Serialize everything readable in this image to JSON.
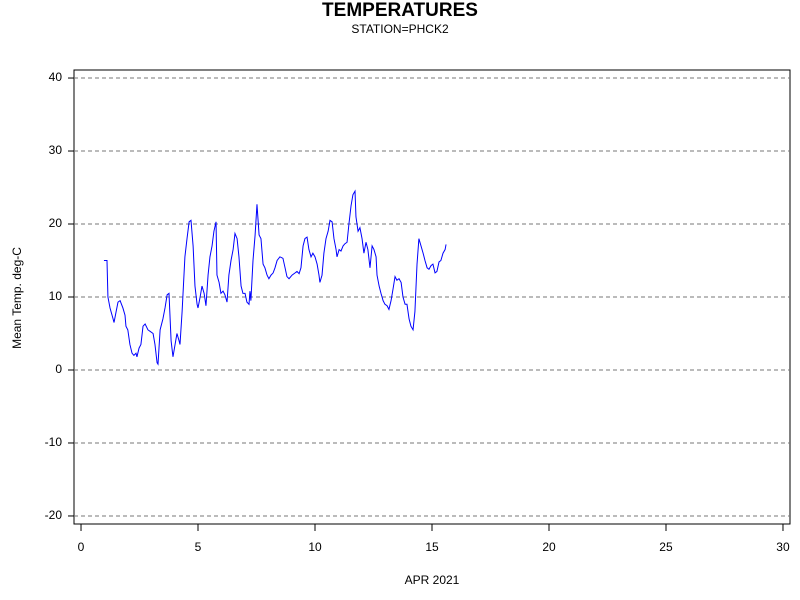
{
  "chart_data": {
    "type": "line",
    "title": "TEMPERATURES",
    "subtitle": "STATION=PHCK2",
    "x_label": "APR 2021",
    "y_label": "Mean Temp. deg-C",
    "xlim": [
      -0.3,
      30.3
    ],
    "ylim": [
      -21.1,
      41.1
    ],
    "xticks": [
      0,
      5,
      10,
      15,
      20,
      25,
      30
    ],
    "yticks": [
      -20,
      -10,
      0,
      10,
      20,
      30,
      40
    ],
    "grid": true,
    "series": [
      {
        "color": "#0000ff",
        "x": [
          0.98,
          1.11,
          1.15,
          1.24,
          1.37,
          1.41,
          1.5,
          1.58,
          1.67,
          1.79,
          1.88,
          1.92,
          2.0,
          2.09,
          2.18,
          2.26,
          2.35,
          2.39,
          2.48,
          2.56,
          2.65,
          2.74,
          2.86,
          2.95,
          3.08,
          3.16,
          3.25,
          3.29,
          3.38,
          3.5,
          3.59,
          3.68,
          3.76,
          3.85,
          3.93,
          4.02,
          4.1,
          4.19,
          4.23,
          4.32,
          4.44,
          4.53,
          4.62,
          4.7,
          4.79,
          4.87,
          4.96,
          5.0,
          5.09,
          5.17,
          5.26,
          5.34,
          5.43,
          5.51,
          5.6,
          5.68,
          5.77,
          5.81,
          5.9,
          5.98,
          6.07,
          6.15,
          6.24,
          6.32,
          6.41,
          6.5,
          6.58,
          6.67,
          6.75,
          6.84,
          6.92,
          7.01,
          7.09,
          7.18,
          7.22,
          7.26,
          7.35,
          7.44,
          7.52,
          7.61,
          7.69,
          7.78,
          7.86,
          7.95,
          8.03,
          8.12,
          8.21,
          8.29,
          8.38,
          8.5,
          8.63,
          8.72,
          8.8,
          8.89,
          9.02,
          9.15,
          9.23,
          9.32,
          9.4,
          9.49,
          9.57,
          9.66,
          9.74,
          9.83,
          9.91,
          10.0,
          10.09,
          10.17,
          10.21,
          10.3,
          10.38,
          10.47,
          10.56,
          10.64,
          10.73,
          10.81,
          10.9,
          10.94,
          11.03,
          11.11,
          11.2,
          11.28,
          11.37,
          11.45,
          11.54,
          11.62,
          11.71,
          11.75,
          11.84,
          11.92,
          12.01,
          12.09,
          12.18,
          12.26,
          12.35,
          12.44,
          12.52,
          12.61,
          12.65,
          12.74,
          12.82,
          12.91,
          12.99,
          13.08,
          13.16,
          13.25,
          13.33,
          13.42,
          13.5,
          13.59,
          13.68,
          13.76,
          13.85,
          13.93,
          14.02,
          14.1,
          14.19,
          14.27,
          14.36,
          14.44,
          14.53,
          14.62,
          14.7,
          14.79,
          14.87,
          14.96,
          15.04,
          15.13,
          15.21,
          15.3,
          15.38,
          15.47,
          15.56,
          15.6
        ],
        "values": [
          15,
          15,
          10,
          8.5,
          7,
          6.5,
          8,
          9.3,
          9.5,
          8.5,
          7.5,
          6,
          5.5,
          3.5,
          2.3,
          2,
          2.3,
          1.8,
          3,
          3.5,
          6,
          6.3,
          5.5,
          5.3,
          5,
          3.5,
          1,
          0.8,
          5.5,
          7,
          8.5,
          10.3,
          10.5,
          4,
          1.8,
          3.5,
          5,
          4,
          3.5,
          8,
          15.5,
          18,
          20.3,
          20.5,
          17,
          11.5,
          9,
          8.5,
          10,
          11.5,
          10.5,
          8.8,
          13,
          15.5,
          17,
          19,
          20.3,
          13,
          12,
          10.5,
          10.8,
          10.3,
          9.3,
          13,
          15,
          16.5,
          18.7,
          18,
          15.5,
          11.5,
          10.5,
          10.5,
          9.3,
          9,
          10.8,
          9.5,
          15,
          18.5,
          22.7,
          18.5,
          18,
          14.5,
          14,
          13,
          12.5,
          13,
          13.3,
          14,
          15,
          15.5,
          15.3,
          14,
          12.8,
          12.5,
          13,
          13.3,
          13.5,
          13.2,
          14,
          17,
          18,
          18.2,
          16.5,
          15.5,
          16,
          15.5,
          14.5,
          13,
          12,
          13,
          16,
          18,
          19,
          20.5,
          20.3,
          18,
          16.5,
          15.5,
          16.5,
          16.3,
          17,
          17.3,
          17.5,
          20,
          22.5,
          24,
          24.5,
          21,
          19,
          19.5,
          18,
          16,
          17.5,
          16.5,
          14,
          17,
          16.5,
          15.5,
          13,
          11.5,
          10.5,
          9.5,
          9,
          8.8,
          8.3,
          9.5,
          11,
          12.8,
          12.3,
          12.5,
          12,
          10,
          9,
          9,
          7,
          6,
          5.5,
          8,
          14.5,
          18,
          17,
          16,
          15,
          14,
          13.8,
          14.3,
          14.5,
          13.3,
          13.5,
          14.8,
          15,
          16,
          16.5,
          17.2
        ]
      }
    ]
  }
}
